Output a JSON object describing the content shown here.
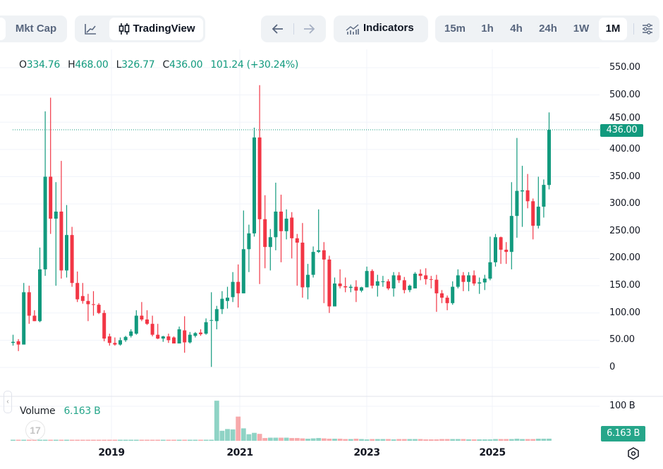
{
  "toolbar": {
    "mkt_cap_label": "Mkt Cap",
    "tradingview_label": "TradingView",
    "indicators_label": "Indicators",
    "timeframes": [
      "15m",
      "1h",
      "4h",
      "24h",
      "1W",
      "1M"
    ],
    "active_timeframe": "1M",
    "icons": [
      "line-chart-icon",
      "candlestick-icon",
      "arrow-left-icon",
      "arrow-right-icon",
      "indicators-icon",
      "settings-sliders-icon"
    ]
  },
  "legend": {
    "o_key": "O",
    "o": "334.76",
    "h_key": "H",
    "h": "468.00",
    "l_key": "L",
    "l": "326.77",
    "c_key": "C",
    "c": "436.00",
    "change": "101.24 (+30.24%)"
  },
  "price_axis": {
    "ticks": [
      "550.00",
      "500.00",
      "450.00",
      "400.00",
      "350.00",
      "300.00",
      "250.00",
      "200.00",
      "150.00",
      "100.00",
      "50.00",
      "0"
    ],
    "last_price": "436.00"
  },
  "volume": {
    "label": "Volume",
    "value": "6.163 B",
    "axis_tick": "100 B",
    "last_volume": "6.163 B"
  },
  "time_axis": {
    "ticks": [
      "2019",
      "2021",
      "2023",
      "2025"
    ]
  },
  "colors": {
    "up": "#129a7e",
    "down": "#f23645",
    "vol_up": "#8fd3c5",
    "vol_down": "#f7a9ab",
    "accent": "#26a68a"
  },
  "chart_data": {
    "type": "candlestick",
    "interval": "1M",
    "ylim": [
      0,
      550
    ],
    "volume_unit": "B",
    "grid": true,
    "columns": [
      "month",
      "open",
      "high",
      "low",
      "close",
      "volume"
    ],
    "candles": [
      [
        "2017-07",
        45,
        60,
        40,
        47,
        1.5
      ],
      [
        "2017-08",
        48,
        52,
        30,
        42,
        1.5
      ],
      [
        "2017-09",
        42,
        155,
        42,
        138,
        1.5
      ],
      [
        "2017-10",
        138,
        150,
        80,
        95,
        1.5
      ],
      [
        "2017-11",
        95,
        105,
        85,
        85,
        1.5
      ],
      [
        "2017-12",
        85,
        220,
        83,
        180,
        1.5
      ],
      [
        "2018-01",
        180,
        470,
        168,
        350,
        1.5
      ],
      [
        "2018-02",
        350,
        495,
        245,
        273,
        1.5
      ],
      [
        "2018-03",
        273,
        340,
        150,
        286,
        1.5
      ],
      [
        "2018-04",
        286,
        379,
        163,
        178,
        1.5
      ],
      [
        "2018-05",
        178,
        298,
        165,
        243,
        1.5
      ],
      [
        "2018-06",
        243,
        258,
        148,
        155,
        1.5
      ],
      [
        "2018-07",
        155,
        176,
        120,
        125,
        1.5
      ],
      [
        "2018-08",
        131,
        155,
        117,
        122,
        1.5
      ],
      [
        "2018-09",
        122,
        135,
        85,
        116,
        1.5
      ],
      [
        "2018-10",
        116,
        140,
        95,
        115,
        1.5
      ],
      [
        "2018-11",
        115,
        118,
        98,
        100,
        1.5
      ],
      [
        "2018-12",
        100,
        105,
        48,
        53,
        1.5
      ],
      [
        "2019-01",
        57,
        62,
        40,
        45,
        1.5
      ],
      [
        "2019-02",
        45,
        55,
        40,
        42,
        1.5
      ],
      [
        "2019-03",
        42,
        55,
        40,
        50,
        1.5
      ],
      [
        "2019-04",
        50,
        58,
        47,
        56,
        1.5
      ],
      [
        "2019-05",
        58,
        70,
        55,
        66,
        1.5
      ],
      [
        "2019-06",
        62,
        105,
        60,
        95,
        1.5
      ],
      [
        "2019-07",
        95,
        120,
        85,
        88,
        1.5
      ],
      [
        "2019-08",
        88,
        105,
        78,
        80,
        1.5
      ],
      [
        "2019-09",
        80,
        95,
        57,
        60,
        1.5
      ],
      [
        "2019-10",
        60,
        80,
        52,
        53,
        1.5
      ],
      [
        "2019-11",
        53,
        58,
        47,
        57,
        1.5
      ],
      [
        "2019-12",
        57,
        62,
        45,
        50,
        1.5
      ],
      [
        "2020-01",
        55,
        57,
        44,
        44,
        1.5
      ],
      [
        "2020-02",
        44,
        75,
        44,
        70,
        1.5
      ],
      [
        "2020-03",
        68,
        94,
        27,
        46,
        1.5
      ],
      [
        "2020-04",
        46,
        65,
        44,
        60,
        1.5
      ],
      [
        "2020-05",
        58,
        65,
        55,
        63,
        1.5
      ],
      [
        "2020-06",
        64,
        70,
        58,
        61,
        1.5
      ],
      [
        "2020-07",
        62,
        90,
        60,
        83,
        1.5
      ],
      [
        "2020-08",
        86,
        138,
        1,
        87,
        3
      ],
      [
        "2020-09",
        85,
        113,
        70,
        107,
        116
      ],
      [
        "2020-10",
        107,
        140,
        98,
        126,
        29
      ],
      [
        "2020-11",
        122,
        148,
        108,
        128,
        34
      ],
      [
        "2020-12",
        129,
        175,
        120,
        157,
        33
      ],
      [
        "2021-01",
        157,
        189,
        110,
        136,
        70
      ],
      [
        "2021-02",
        136,
        288,
        136,
        217,
        36
      ],
      [
        "2021-03",
        217,
        262,
        175,
        246,
        19
      ],
      [
        "2021-04",
        246,
        440,
        240,
        422,
        23
      ],
      [
        "2021-05",
        422,
        518,
        153,
        272,
        20
      ],
      [
        "2021-06",
        272,
        316,
        182,
        221,
        8
      ],
      [
        "2021-07",
        221,
        254,
        178,
        239,
        9
      ],
      [
        "2021-08",
        239,
        339,
        215,
        286,
        9
      ],
      [
        "2021-09",
        286,
        317,
        193,
        250,
        9
      ],
      [
        "2021-10",
        250,
        290,
        235,
        273,
        9
      ],
      [
        "2021-11",
        275,
        285,
        200,
        237,
        8
      ],
      [
        "2021-12",
        237,
        245,
        150,
        229,
        8
      ],
      [
        "2022-01",
        229,
        265,
        128,
        147,
        7
      ],
      [
        "2022-02",
        147,
        190,
        125,
        170,
        6
      ],
      [
        "2022-03",
        170,
        222,
        165,
        212,
        7
      ],
      [
        "2022-04",
        212,
        290,
        210,
        215,
        8
      ],
      [
        "2022-05",
        215,
        230,
        118,
        198,
        7
      ],
      [
        "2022-06",
        198,
        205,
        100,
        112,
        6
      ],
      [
        "2022-07",
        112,
        165,
        112,
        154,
        6
      ],
      [
        "2022-08",
        154,
        180,
        145,
        149,
        6
      ],
      [
        "2022-09",
        149,
        165,
        138,
        147,
        5
      ],
      [
        "2022-10",
        146,
        152,
        138,
        148,
        5
      ],
      [
        "2022-11",
        148,
        160,
        120,
        141,
        6
      ],
      [
        "2022-12",
        141,
        148,
        138,
        147,
        5
      ],
      [
        "2023-01",
        147,
        185,
        147,
        177,
        4
      ],
      [
        "2023-02",
        177,
        180,
        145,
        150,
        5
      ],
      [
        "2023-03",
        150,
        170,
        130,
        158,
        5
      ],
      [
        "2023-04",
        158,
        168,
        148,
        158,
        5
      ],
      [
        "2023-05",
        158,
        162,
        142,
        145,
        5
      ],
      [
        "2023-06",
        145,
        175,
        130,
        169,
        4
      ],
      [
        "2023-07",
        169,
        175,
        155,
        160,
        5
      ],
      [
        "2023-08",
        160,
        166,
        136,
        142,
        5
      ],
      [
        "2023-09",
        142,
        152,
        138,
        150,
        5
      ],
      [
        "2023-10",
        145,
        175,
        145,
        172,
        5
      ],
      [
        "2023-11",
        172,
        180,
        160,
        168,
        5
      ],
      [
        "2023-12",
        169,
        182,
        152,
        162,
        4
      ],
      [
        "2024-01",
        162,
        168,
        145,
        161,
        4
      ],
      [
        "2024-02",
        161,
        170,
        102,
        136,
        4
      ],
      [
        "2024-03",
        136,
        142,
        118,
        128,
        5
      ],
      [
        "2024-04",
        128,
        132,
        105,
        118,
        5
      ],
      [
        "2024-05",
        118,
        158,
        115,
        148,
        5
      ],
      [
        "2024-06",
        148,
        180,
        145,
        169,
        5
      ],
      [
        "2024-07",
        169,
        175,
        140,
        157,
        5
      ],
      [
        "2024-08",
        157,
        175,
        140,
        169,
        4
      ],
      [
        "2024-09",
        169,
        178,
        150,
        154,
        4
      ],
      [
        "2024-10",
        154,
        165,
        135,
        156,
        4
      ],
      [
        "2024-11",
        156,
        170,
        142,
        163,
        4
      ],
      [
        "2024-12",
        163,
        240,
        160,
        193,
        4
      ],
      [
        "2025-01",
        193,
        245,
        185,
        239,
        5
      ],
      [
        "2025-02",
        239,
        240,
        190,
        216,
        5
      ],
      [
        "2025-03",
        216,
        230,
        190,
        212,
        5
      ],
      [
        "2025-04",
        212,
        340,
        180,
        278,
        5
      ],
      [
        "2025-05",
        278,
        421,
        238,
        324,
        6
      ],
      [
        "2025-06",
        323,
        370,
        258,
        325,
        5
      ],
      [
        "2025-07",
        325,
        355,
        292,
        305,
        5
      ],
      [
        "2025-08",
        305,
        310,
        235,
        260,
        5
      ],
      [
        "2025-09",
        260,
        350,
        255,
        295,
        6
      ],
      [
        "2025-10",
        295,
        345,
        275,
        335,
        6
      ],
      [
        "2025-11",
        334.76,
        468,
        326.77,
        436,
        6.163
      ]
    ]
  }
}
